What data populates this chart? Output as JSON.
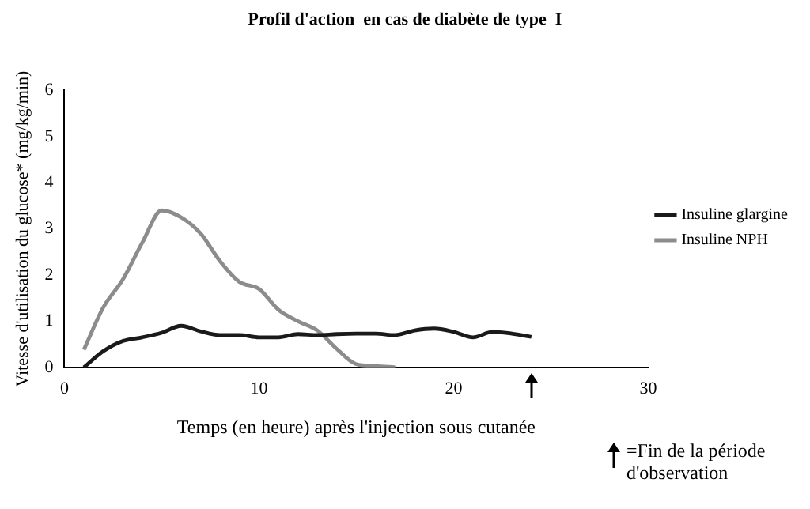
{
  "chart_data": {
    "type": "line",
    "title": "Profil d'action  en cas de diabète de type  I",
    "xlabel": "Temps (en heure) après l'injection sous cutanée",
    "ylabel": "Vitesse d'utilisation du glucose* (mg/kg/min)",
    "xlim": [
      0,
      30
    ],
    "xticks": [
      0,
      10,
      20,
      30
    ],
    "ylim": [
      0,
      6
    ],
    "yticks": [
      0,
      1,
      2,
      3,
      4,
      5,
      6
    ],
    "grid": false,
    "legend": "right",
    "marker": "none",
    "line_style": "solid",
    "series": [
      {
        "name": "Insuline glargine",
        "color": "#1a1a1a",
        "x": [
          1,
          2,
          3,
          4,
          5,
          6,
          7,
          8,
          9,
          10,
          11,
          12,
          13,
          14,
          15,
          16,
          17,
          18,
          19,
          20,
          21,
          22,
          23,
          24
        ],
        "values": [
          0,
          0.35,
          0.57,
          0.65,
          0.75,
          0.9,
          0.78,
          0.7,
          0.7,
          0.65,
          0.65,
          0.72,
          0.7,
          0.72,
          0.73,
          0.73,
          0.7,
          0.8,
          0.84,
          0.77,
          0.65,
          0.77,
          0.73,
          0.66
        ]
      },
      {
        "name": "Insuline NPH",
        "color": "#8c8c8c",
        "x": [
          1,
          2,
          3,
          4,
          5,
          6,
          7,
          8,
          9,
          10,
          11,
          12,
          13,
          14,
          15,
          16,
          17
        ],
        "values": [
          0.38,
          1.3,
          1.9,
          2.7,
          3.4,
          3.25,
          2.9,
          2.3,
          1.85,
          1.7,
          1.25,
          1.0,
          0.8,
          0.4,
          0.07,
          0.03,
          0
        ]
      }
    ],
    "annotations": [
      "=Fin  de la période d'observation"
    ]
  }
}
